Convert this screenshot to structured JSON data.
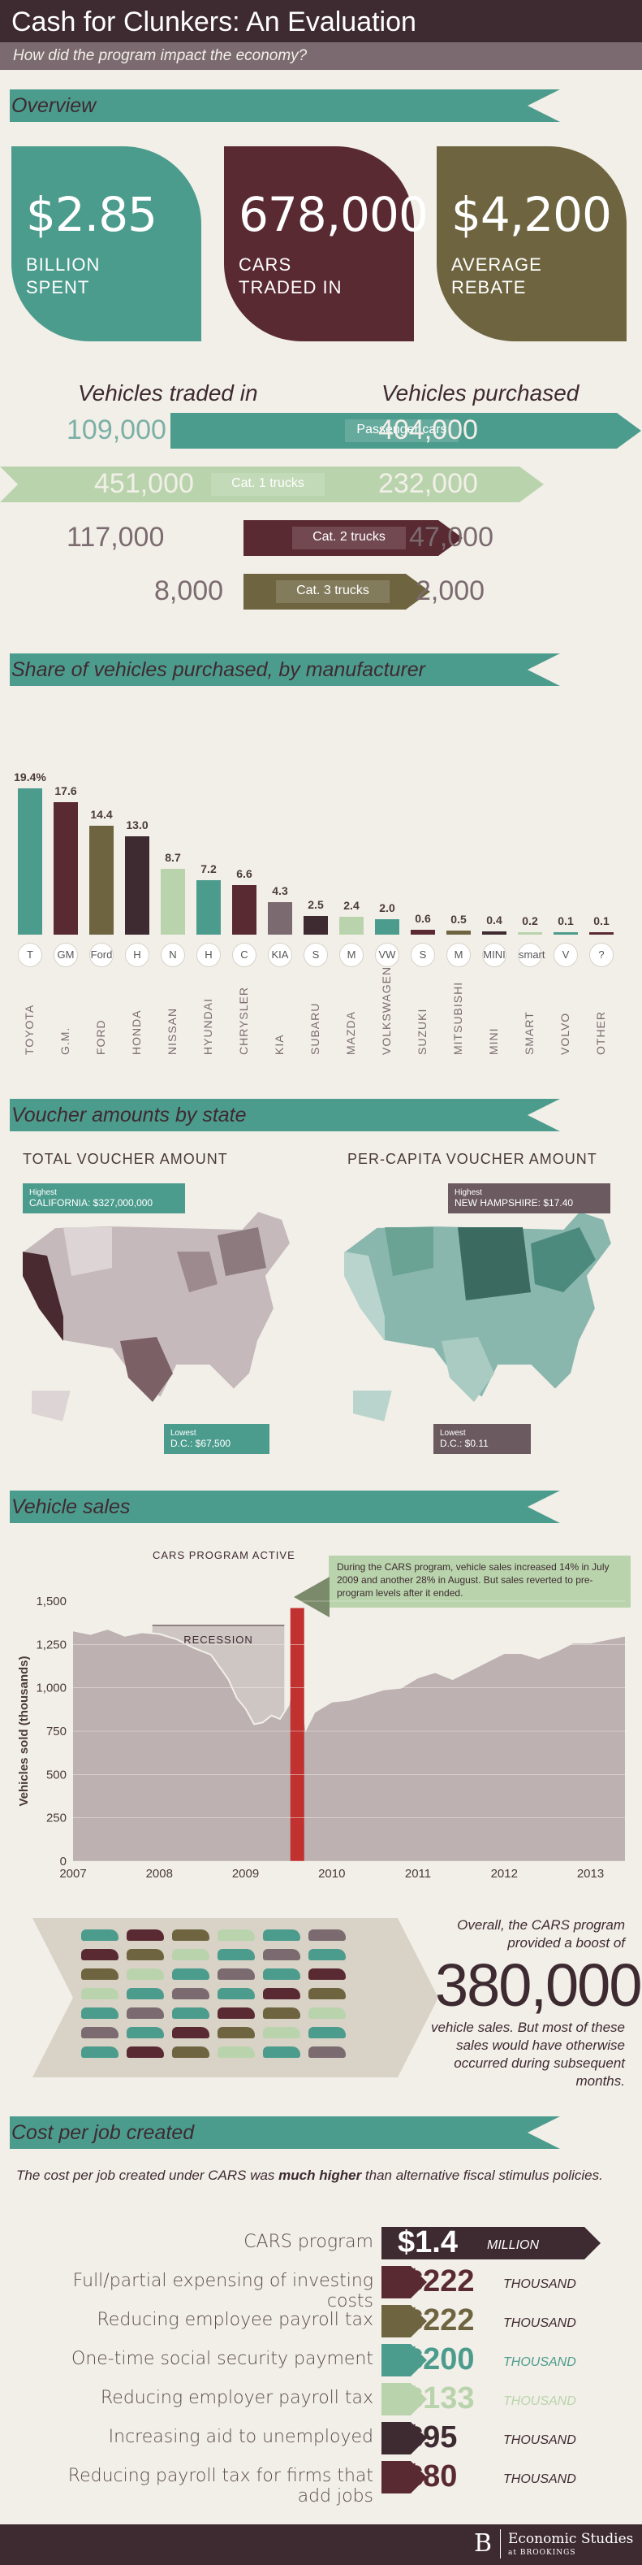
{
  "header": {
    "title": "Cash for Clunkers: An Evaluation",
    "subtitle": "How did the program impact the economy?"
  },
  "overview": {
    "section_title": "Overview",
    "cards": [
      {
        "value": "$2.85",
        "label1": "BILLION",
        "label2": "SPENT",
        "color": "#4c9c8d"
      },
      {
        "value": "678,000",
        "label1": "CARS",
        "label2": "TRADED IN",
        "color": "#5a2a33"
      },
      {
        "value": "$4,200",
        "label1": "AVERAGE",
        "label2": "REBATE",
        "color": "#6e6540"
      }
    ]
  },
  "vehicles": {
    "traded_heading": "Vehicles traded in",
    "purchased_heading": "Vehicles purchased",
    "rows": [
      {
        "category": "Passenger cars",
        "traded": "109,000",
        "purchased": "404,000",
        "color": "#4c9c8d"
      },
      {
        "category": "Cat. 1 trucks",
        "traded": "451,000",
        "purchased": "232,000",
        "color": "#b9d4ac"
      },
      {
        "category": "Cat. 2 trucks",
        "traded": "117,000",
        "purchased": "47,000",
        "color": "#5a2a33"
      },
      {
        "category": "Cat. 3 trucks",
        "traded": "8,000",
        "purchased": "2,000",
        "color": "#6e6540"
      }
    ]
  },
  "share": {
    "section_title": "Share of vehicles purchased, by manufacturer",
    "chart_data": {
      "type": "bar",
      "categories": [
        "TOYOTA",
        "G.M.",
        "FORD",
        "HONDA",
        "NISSAN",
        "HYUNDAI",
        "CHRYSLER",
        "KIA",
        "SUBARU",
        "MAZDA",
        "VOLKSWAGEN",
        "SUZUKI",
        "MITSUBISHI",
        "MINI",
        "SMART",
        "VOLVO",
        "OTHER"
      ],
      "values": [
        19.4,
        17.6,
        14.4,
        13.0,
        8.7,
        7.2,
        6.6,
        4.3,
        2.5,
        2.4,
        2.0,
        0.6,
        0.5,
        0.4,
        0.2,
        0.1,
        0.1
      ],
      "value_labels": [
        "19.4%",
        "17.6",
        "14.4",
        "13.0",
        "8.7",
        "7.2",
        "6.6",
        "4.3",
        "2.5",
        "2.4",
        "2.0",
        "0.6",
        "0.5",
        "0.4",
        "0.2",
        "0.1",
        "0.1"
      ],
      "colors": [
        "#4c9c8d",
        "#5a2a33",
        "#6e6540",
        "#3e2a31",
        "#b9d4ac",
        "#4c9c8d",
        "#5a2a33",
        "#7b6b70",
        "#3e2a31",
        "#b9d4ac",
        "#4c9c8d",
        "#5a2a33",
        "#6e6540",
        "#3e2a31",
        "#b9d4ac",
        "#4c9c8d",
        "#5a2a33"
      ],
      "icons": [
        "T",
        "GM",
        "Ford",
        "H",
        "N",
        "H",
        "C",
        "KIA",
        "S",
        "M",
        "VW",
        "S",
        "M",
        "MINI",
        "smart",
        "V",
        "?"
      ]
    }
  },
  "voucher": {
    "section_title": "Voucher amounts by state",
    "total_title": "TOTAL VOUCHER AMOUNT",
    "percap_title": "PER-CAPITA VOUCHER AMOUNT",
    "total_high_label": "Highest",
    "total_high_value": "CALIFORNIA: $327,000,000",
    "total_low_label": "Lowest",
    "total_low_value": "D.C.: $67,500",
    "percap_high_label": "Highest",
    "percap_high_value": "NEW HAMPSHIRE: $17.40",
    "percap_low_label": "Lowest",
    "percap_low_value": "D.C.: $0.11"
  },
  "sales": {
    "section_title": "Vehicle sales",
    "cars_active": "CARS PROGRAM ACTIVE",
    "recession": "RECESSION",
    "note": "During the CARS program, vehicle sales increased 14% in July 2009 and another 28% in August. But sales reverted to pre-program levels after it ended.",
    "chart_data": {
      "type": "area",
      "ylabel": "Vehicles sold (thousands)",
      "ylim": [
        0,
        1500
      ],
      "yticks": [
        "0",
        "250",
        "500",
        "750",
        "1,000",
        "1,250",
        "1,500"
      ],
      "xticks": [
        "2007",
        "2008",
        "2009",
        "2010",
        "2011",
        "2012",
        "2013"
      ],
      "x": [
        2007.0,
        2007.2,
        2007.4,
        2007.6,
        2007.8,
        2008.0,
        2008.2,
        2008.4,
        2008.6,
        2008.8,
        2008.9,
        2009.0,
        2009.1,
        2009.2,
        2009.3,
        2009.4,
        2009.5,
        2009.55,
        2009.6,
        2009.65,
        2009.7,
        2009.8,
        2010.0,
        2010.2,
        2010.4,
        2010.6,
        2010.8,
        2011.0,
        2011.2,
        2011.4,
        2011.6,
        2011.8,
        2012.0,
        2012.2,
        2012.4,
        2012.6,
        2012.8,
        2013.0,
        2013.2,
        2013.4
      ],
      "values": [
        1330,
        1310,
        1340,
        1300,
        1320,
        1310,
        1280,
        1230,
        1190,
        1050,
        940,
        880,
        790,
        800,
        840,
        820,
        900,
        1050,
        1250,
        980,
        760,
        860,
        920,
        930,
        960,
        990,
        1000,
        1060,
        1090,
        1050,
        1100,
        1150,
        1200,
        1200,
        1170,
        1210,
        1260,
        1260,
        1280,
        1300
      ]
    },
    "summary_pre": "Overall, the CARS program provided a boost of",
    "summary_num": "380,000",
    "summary_post": "vehicle sales. But most of these sales would have otherwise occurred during subsequent months."
  },
  "jobs": {
    "section_title": "Cost per job created",
    "intro_pre": "The cost per job created under CARS was ",
    "intro_bold": "much higher",
    "intro_post": " than alternative fiscal stimulus policies.",
    "rows": [
      {
        "label": "CARS program",
        "value": "$1.4",
        "unit": "MILLION",
        "color": "#3e2a31"
      },
      {
        "label": "Full/partial expensing of investing costs",
        "value": "$222",
        "unit": "THOUSAND",
        "color": "#5a2a33"
      },
      {
        "label": "Reducing employee payroll tax",
        "value": "$222",
        "unit": "THOUSAND",
        "color": "#6e6540"
      },
      {
        "label": "One-time social security payment",
        "value": "$200",
        "unit": "THOUSAND",
        "color": "#4c9c8d"
      },
      {
        "label": "Reducing employer payroll tax",
        "value": "$133",
        "unit": "THOUSAND",
        "color": "#b9d4ac"
      },
      {
        "label": "Increasing aid to unemployed",
        "value": "$95",
        "unit": "THOUSAND",
        "color": "#3e2a31"
      },
      {
        "label": "Reducing payroll tax for firms that add jobs",
        "value": "$80",
        "unit": "THOUSAND",
        "color": "#5a2a33"
      }
    ]
  },
  "footer": {
    "brand": "Economic Studies",
    "sub": "at BROOKINGS"
  }
}
